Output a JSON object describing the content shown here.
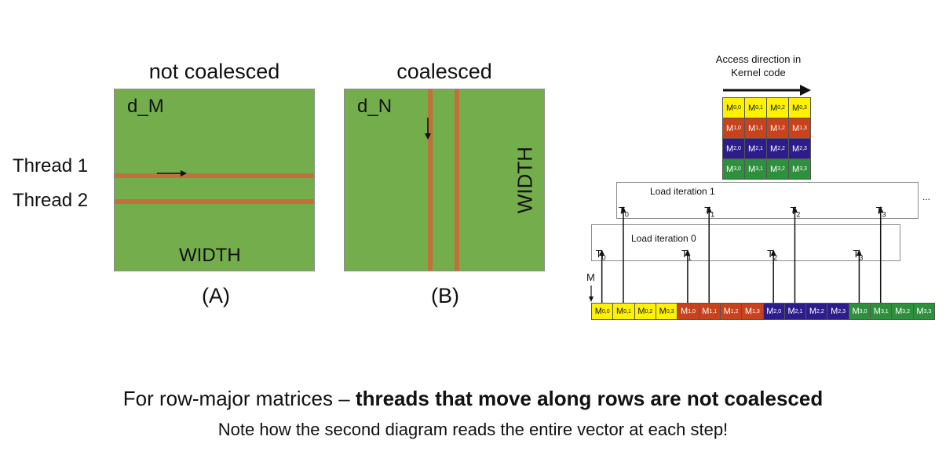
{
  "panel_a": {
    "title": "not coalesced",
    "matrix_name": "d_M",
    "width_label": "WIDTH",
    "caption": "(A)",
    "thread_labels": [
      "Thread 1",
      "Thread 2"
    ]
  },
  "panel_b": {
    "title": "coalesced",
    "matrix_name": "d_N",
    "width_label": "WIDTH",
    "caption": "(B)"
  },
  "panel_c": {
    "access_direction": "Access direction in Kernel code",
    "matrix_grid": [
      [
        "0,0",
        "0,1",
        "0,2",
        "0,3"
      ],
      [
        "1,0",
        "1,1",
        "1,2",
        "1,3"
      ],
      [
        "2,0",
        "2,1",
        "2,2",
        "2,3"
      ],
      [
        "3,0",
        "3,1",
        "3,2",
        "3,3"
      ]
    ],
    "load_iteration_1": "Load iteration 1",
    "load_iteration_0": "Load iteration 0",
    "ellipsis": "...",
    "m_label": "M",
    "thread_names": [
      "0",
      "1",
      "2",
      "3"
    ],
    "row_colors": [
      "#fff200",
      "#c8421e",
      "#2d1c8c",
      "#2e8f3d"
    ]
  },
  "caption": {
    "line1_prefix": "For row-major matrices – ",
    "line1_bold": "threads that move along rows are not coalesced",
    "line2": "Note how the second diagram reads the entire vector at each step!"
  }
}
